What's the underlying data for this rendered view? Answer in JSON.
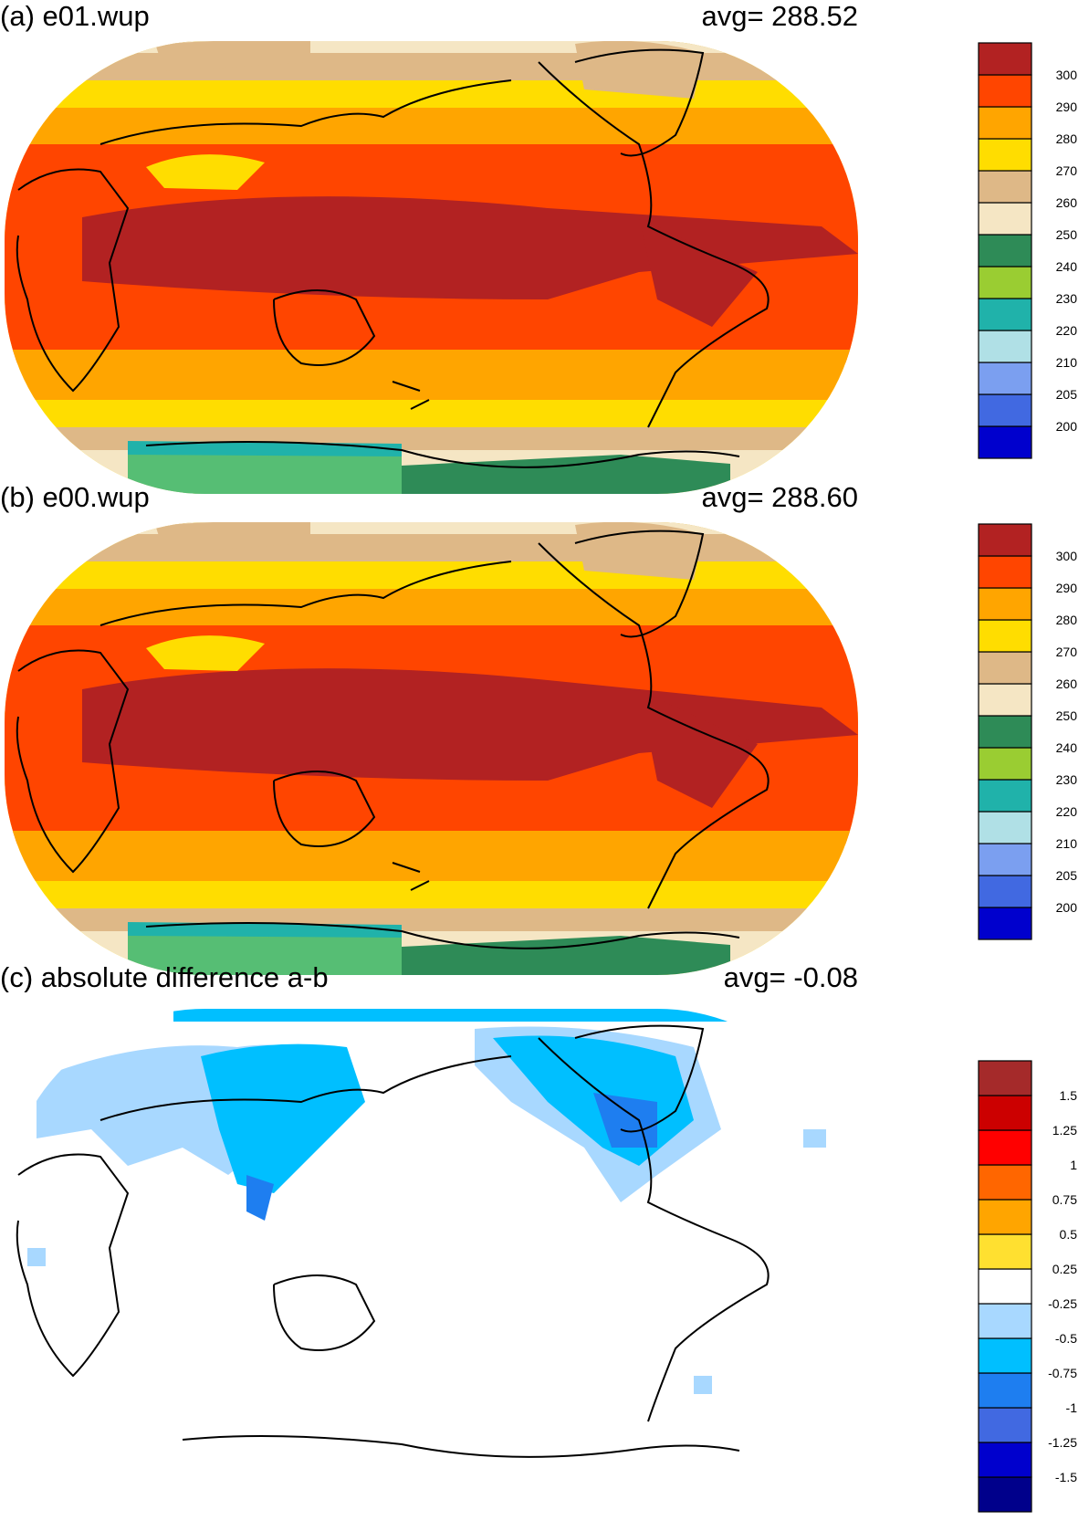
{
  "panels": [
    {
      "id": "a",
      "title": "(a) e01.wup",
      "avg_label": "avg=  288.52",
      "avg": 288.52,
      "colorbar": {
        "colors": [
          "#0000cd",
          "#4169e1",
          "#7b9ff0",
          "#b0e0e6",
          "#20b2aa",
          "#9acd32",
          "#2e8b57",
          "#f5e6c4",
          "#deb887",
          "#ffdd00",
          "#ffa500",
          "#ff4500",
          "#b22222"
        ],
        "labels": [
          "200",
          "205",
          "210",
          "220",
          "230",
          "240",
          "250",
          "260",
          "270",
          "280",
          "290",
          "300"
        ]
      }
    },
    {
      "id": "b",
      "title": "(b) e00.wup",
      "avg_label": "avg=  288.60",
      "avg": 288.6,
      "colorbar": {
        "colors": [
          "#0000cd",
          "#4169e1",
          "#7b9ff0",
          "#b0e0e6",
          "#20b2aa",
          "#9acd32",
          "#2e8b57",
          "#f5e6c4",
          "#deb887",
          "#ffdd00",
          "#ffa500",
          "#ff4500",
          "#b22222"
        ],
        "labels": [
          "200",
          "205",
          "210",
          "220",
          "230",
          "240",
          "250",
          "260",
          "270",
          "280",
          "290",
          "300"
        ]
      }
    },
    {
      "id": "c",
      "title": "(c) absolute difference a-b",
      "avg_label": "avg=   -0.08",
      "avg": -0.08,
      "colorbar": {
        "colors": [
          "#00008b",
          "#0000cd",
          "#4169e1",
          "#1e7ef0",
          "#00bfff",
          "#a8d8ff",
          "#ffffff",
          "#ffe030",
          "#ffa500",
          "#ff6600",
          "#ff0000",
          "#cc0000",
          "#a52a2a"
        ],
        "labels": [
          "-1.5",
          "-1.25",
          "-1",
          "-0.75",
          "-0.5",
          "-0.25",
          "0.25",
          "0.5",
          "0.75",
          "1",
          "1.25",
          "1.5"
        ]
      }
    }
  ]
}
